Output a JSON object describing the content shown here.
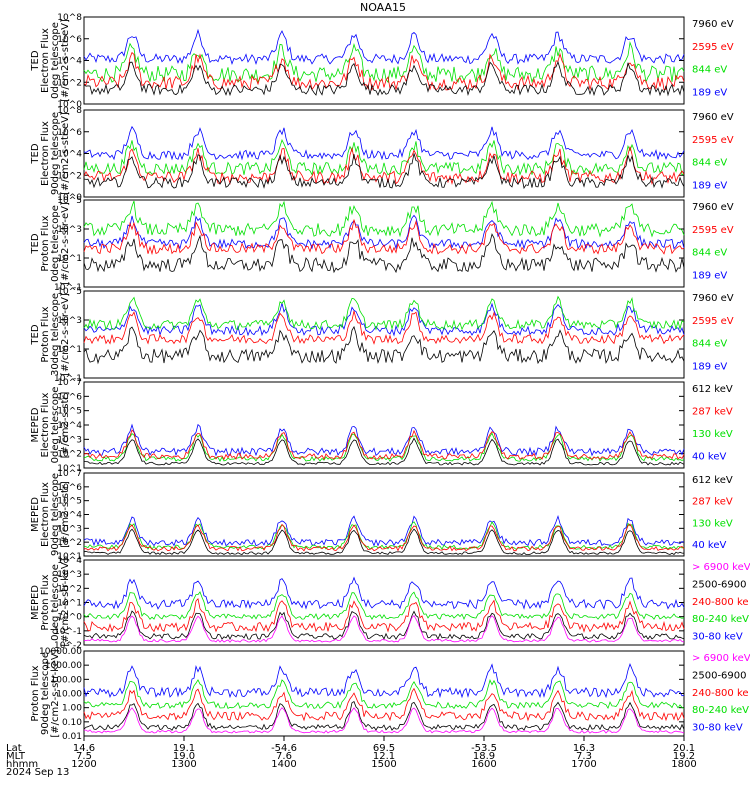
{
  "title": "NOAA15",
  "date_label": "2024 Sep 13",
  "colors": {
    "black": "#000000",
    "red": "#ff0000",
    "green": "#00e000",
    "blue": "#0000ff",
    "magenta": "#ff00ff"
  },
  "footer": {
    "row_labels": [
      "Lat",
      "MLT",
      "hhmm"
    ],
    "columns": [
      {
        "lat": "14.6",
        "mlt": "7.5",
        "hhmm": "1200"
      },
      {
        "lat": "19.1",
        "mlt": "19.0",
        "hhmm": "1300"
      },
      {
        "lat": "-54.6",
        "mlt": "7.6",
        "hhmm": "1400"
      },
      {
        "lat": "69.5",
        "mlt": "12.1",
        "hhmm": "1500"
      },
      {
        "lat": "-53.5",
        "mlt": "18.9",
        "hhmm": "1600"
      },
      {
        "lat": "16.3",
        "mlt": "7.3",
        "hhmm": "1700"
      },
      {
        "lat": "20.1",
        "mlt": "19.2",
        "hhmm": "1800"
      }
    ]
  },
  "chart_data": [
    {
      "type": "line",
      "ylabel": [
        "TED",
        "Electron Flux",
        "0deg telescope",
        "[#/cm2-s-str-eV]"
      ],
      "yticks": [
        "10^0",
        "10^2",
        "10^4",
        "10^6",
        "10^8"
      ],
      "ylim_log": [
        0,
        8
      ],
      "legend": [
        {
          "label": "7960 eV",
          "color": "black"
        },
        {
          "label": "2595 eV",
          "color": "red"
        },
        {
          "label": "844 eV",
          "color": "green"
        },
        {
          "label": "189 eV",
          "color": "blue"
        }
      ],
      "series_bands": {
        "blue": [
          3.2,
          4.6
        ],
        "green": [
          1.2,
          3.5
        ],
        "red": [
          0.6,
          2.6
        ],
        "black": [
          0.3,
          1.8
        ]
      }
    },
    {
      "type": "line",
      "ylabel": [
        "TED",
        "Electron Flux",
        "90deg telescope",
        "[#/cm2-s-str-eV]"
      ],
      "yticks": [
        "10^0",
        "10^2",
        "10^4",
        "10^6",
        "10^8"
      ],
      "ylim_log": [
        0,
        8
      ],
      "legend": [
        {
          "label": "7960 eV",
          "color": "black"
        },
        {
          "label": "2595 eV",
          "color": "red"
        },
        {
          "label": "844 eV",
          "color": "green"
        },
        {
          "label": "189 eV",
          "color": "blue"
        }
      ],
      "series_bands": {
        "blue": [
          3.0,
          4.3
        ],
        "green": [
          1.4,
          3.2
        ],
        "red": [
          0.6,
          2.4
        ],
        "black": [
          0.3,
          1.8
        ]
      }
    },
    {
      "type": "line",
      "ylabel": [
        "TED",
        "Proton Flux",
        "0deg telescope",
        "[#/cm2-s-str-eV]"
      ],
      "yticks": [
        "10^-1",
        "10^1",
        "10^3",
        "10^5"
      ],
      "ylim_log": [
        -1,
        5
      ],
      "legend": [
        {
          "label": "7960 eV",
          "color": "black"
        },
        {
          "label": "2595 eV",
          "color": "red"
        },
        {
          "label": "844 eV",
          "color": "green"
        },
        {
          "label": "189 eV",
          "color": "blue"
        }
      ],
      "series_bands": {
        "blue": [
          1.3,
          2.3
        ],
        "green": [
          2.0,
          3.4
        ],
        "red": [
          0.9,
          2.0
        ],
        "black": [
          -0.5,
          1.0
        ]
      }
    },
    {
      "type": "line",
      "ylabel": [
        "TED",
        "Proton Flux",
        "30deg telescope",
        "[#/cm2-s-str-eV]"
      ],
      "yticks": [
        "10^-1",
        "10^1",
        "10^3",
        "10^5"
      ],
      "ylim_log": [
        -1,
        5
      ],
      "legend": [
        {
          "label": "7960 eV",
          "color": "black"
        },
        {
          "label": "2595 eV",
          "color": "red"
        },
        {
          "label": "844 eV",
          "color": "green"
        },
        {
          "label": "189 eV",
          "color": "blue"
        }
      ],
      "series_bands": {
        "blue": [
          1.6,
          2.6
        ],
        "green": [
          2.0,
          3.0
        ],
        "red": [
          1.0,
          2.0
        ],
        "black": [
          -0.5,
          1.0
        ]
      }
    },
    {
      "type": "line",
      "ylabel": [
        "MEPED",
        "Electron Flux",
        "0deg telescope",
        "[#/cm2-s-str]"
      ],
      "yticks": [
        "10^1",
        "10^2",
        "10^3",
        "10^4",
        "10^5",
        "10^6",
        "10^7"
      ],
      "ylim_log": [
        1,
        7
      ],
      "legend": [
        {
          "label": "612 keV",
          "color": "black"
        },
        {
          "label": "287 keV",
          "color": "red"
        },
        {
          "label": "130 keV",
          "color": "green"
        },
        {
          "label": "40 keV",
          "color": "blue"
        }
      ],
      "series_bands": {
        "blue": [
          1.6,
          2.4
        ],
        "green": [
          1.3,
          1.8
        ],
        "red": [
          1.4,
          2.0
        ],
        "black": [
          1.1,
          1.4
        ]
      }
    },
    {
      "type": "line",
      "ylabel": [
        "MEPED",
        "Electron Flux",
        "90deg telescope",
        "[#/cm2-s-str]"
      ],
      "yticks": [
        "10^1",
        "10^2",
        "10^3",
        "10^4",
        "10^5",
        "10^6",
        "10^7"
      ],
      "ylim_log": [
        1,
        7
      ],
      "legend": [
        {
          "label": "612 keV",
          "color": "black"
        },
        {
          "label": "287 keV",
          "color": "red"
        },
        {
          "label": "130 keV",
          "color": "green"
        },
        {
          "label": "40 keV",
          "color": "blue"
        }
      ],
      "series_bands": {
        "blue": [
          1.5,
          2.2
        ],
        "green": [
          1.3,
          1.8
        ],
        "red": [
          1.2,
          1.7
        ],
        "black": [
          1.0,
          1.3
        ]
      }
    },
    {
      "type": "line",
      "ylabel": [
        "MEPED",
        "Proton Flux",
        "0deg telescope",
        "[#/cm2-s-str-keV]"
      ],
      "yticks": [
        "10^-2",
        "10^-1",
        "10^0",
        "10^1",
        "10^2",
        "10^3",
        "10^4"
      ],
      "ylim_log": [
        -2,
        4
      ],
      "legend": [
        {
          "label": "> 6900 keV",
          "color": "magenta"
        },
        {
          "label": "2500-6900",
          "color": "black"
        },
        {
          "label": "240-800 ke",
          "color": "red"
        },
        {
          "label": "80-240 keV",
          "color": "green"
        },
        {
          "label": "30-80 keV",
          "color": "blue"
        }
      ],
      "series_bands": {
        "blue": [
          0.2,
          1.2
        ],
        "green": [
          -0.4,
          0.2
        ],
        "red": [
          -1.4,
          -0.4
        ],
        "black": [
          -1.8,
          -1.2
        ],
        "magenta": [
          -1.9,
          -1.6
        ]
      }
    },
    {
      "type": "line",
      "ylabel": [
        "Proton Flux",
        "90deg telescope",
        "[#/cm2-s-str-keV]"
      ],
      "yticks": [
        "0.01",
        "0.10",
        "1.00",
        "10.00",
        "100.00",
        "1000.00",
        "10000.00"
      ],
      "ylim_log": [
        -2,
        4
      ],
      "legend": [
        {
          "label": "> 6900 keV",
          "color": "magenta"
        },
        {
          "label": "2500-6900",
          "color": "black"
        },
        {
          "label": "240-800 ke",
          "color": "red"
        },
        {
          "label": "80-240 keV",
          "color": "green"
        },
        {
          "label": "30-80 keV",
          "color": "blue"
        }
      ],
      "series_bands": {
        "blue": [
          0.4,
          1.4
        ],
        "green": [
          -0.3,
          0.4
        ],
        "red": [
          -1.2,
          -0.3
        ],
        "black": [
          -1.8,
          -1.2
        ],
        "magenta": [
          -1.9,
          -1.6
        ]
      }
    }
  ]
}
